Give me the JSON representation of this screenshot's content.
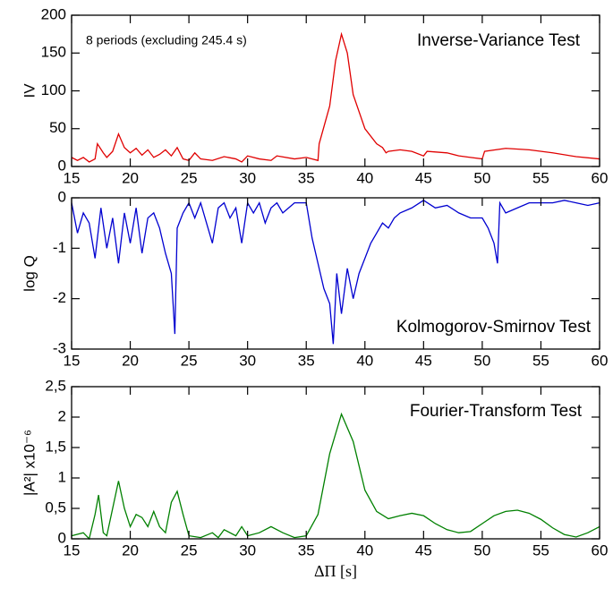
{
  "chart_data": [
    {
      "type": "line",
      "ylabel": "IV",
      "annotations": [
        "8 periods (excluding 245.4 s)",
        "Inverse-Variance Test"
      ],
      "xlim": [
        15,
        60
      ],
      "xticks": [
        15,
        20,
        25,
        30,
        35,
        40,
        45,
        50,
        55,
        60
      ],
      "ylim": [
        0,
        200
      ],
      "yticks": [
        0,
        50,
        100,
        150,
        200
      ],
      "x": [
        15,
        15.5,
        16,
        16.5,
        17,
        17.2,
        17.7,
        18,
        18.5,
        19,
        19.5,
        20,
        20.5,
        21,
        21.5,
        22,
        22.5,
        23,
        23.5,
        24,
        24.5,
        25,
        25.5,
        26,
        27,
        28,
        29,
        29.5,
        30,
        31,
        32,
        32.5,
        34,
        35,
        36,
        36.1,
        37,
        37.5,
        38,
        38.5,
        39,
        40,
        41,
        41.5,
        41.8,
        42,
        43,
        44,
        45,
        45.3,
        47,
        48,
        49,
        50,
        50.2,
        52,
        54,
        56,
        58,
        60
      ],
      "series": [
        {
          "color": "#e00000",
          "values": [
            12,
            8,
            12,
            6,
            10,
            30,
            18,
            12,
            20,
            43,
            25,
            18,
            24,
            15,
            22,
            12,
            16,
            22,
            14,
            25,
            10,
            8,
            18,
            10,
            8,
            13,
            10,
            6,
            14,
            10,
            8,
            14,
            10,
            12,
            8,
            30,
            80,
            140,
            175,
            150,
            95,
            50,
            30,
            25,
            18,
            20,
            22,
            20,
            14,
            20,
            18,
            14,
            12,
            10,
            20,
            24,
            22,
            18,
            13,
            10
          ]
        }
      ]
    },
    {
      "type": "line",
      "ylabel": "log Q",
      "annotations": [
        "Kolmogorov-Smirnov Test"
      ],
      "xlim": [
        15,
        60
      ],
      "xticks": [
        15,
        20,
        25,
        30,
        35,
        40,
        45,
        50,
        55,
        60
      ],
      "ylim": [
        -3,
        0
      ],
      "yticks": [
        -3,
        -2,
        -1,
        0
      ],
      "x": [
        15,
        15.5,
        16,
        16.5,
        17,
        17.5,
        18,
        18.5,
        19,
        19.5,
        20,
        20.5,
        21,
        21.5,
        22,
        22.5,
        23,
        23.5,
        23.8,
        24,
        24.5,
        25,
        25.5,
        26,
        26.5,
        27,
        27.5,
        28,
        28.5,
        29,
        29.5,
        30,
        30.5,
        31,
        31.5,
        32,
        32.5,
        33,
        34,
        35,
        35.5,
        36,
        36.5,
        37,
        37.3,
        37.6,
        38,
        38.5,
        39,
        39.5,
        40,
        40.5,
        41,
        41.5,
        42,
        42.5,
        43,
        44,
        45,
        46,
        47,
        48,
        49,
        50,
        50.5,
        51,
        51.3,
        51.5,
        52,
        53,
        54,
        55,
        56,
        57,
        58,
        59,
        60
      ],
      "series": [
        {
          "color": "#0000d0",
          "values": [
            -0.1,
            -0.7,
            -0.3,
            -0.5,
            -1.2,
            -0.2,
            -1.0,
            -0.4,
            -1.3,
            -0.3,
            -0.9,
            -0.2,
            -1.1,
            -0.4,
            -0.3,
            -0.6,
            -1.1,
            -1.5,
            -2.7,
            -0.6,
            -0.3,
            -0.1,
            -0.4,
            -0.1,
            -0.5,
            -0.9,
            -0.2,
            -0.1,
            -0.4,
            -0.2,
            -0.9,
            -0.1,
            -0.3,
            -0.1,
            -0.5,
            -0.2,
            -0.1,
            -0.3,
            -0.1,
            -0.1,
            -0.8,
            -1.3,
            -1.8,
            -2.1,
            -2.9,
            -1.5,
            -2.3,
            -1.4,
            -2.0,
            -1.5,
            -1.2,
            -0.9,
            -0.7,
            -0.5,
            -0.6,
            -0.4,
            -0.3,
            -0.2,
            -0.05,
            -0.2,
            -0.15,
            -0.3,
            -0.4,
            -0.4,
            -0.6,
            -0.9,
            -1.3,
            -0.1,
            -0.3,
            -0.2,
            -0.1,
            -0.1,
            -0.1,
            -0.05,
            -0.1,
            -0.15,
            -0.1
          ]
        }
      ]
    },
    {
      "type": "line",
      "ylabel": "|A²| x10⁻⁶",
      "xlabel": "ΔΠ [s]",
      "annotations": [
        "Fourier-Transform Test"
      ],
      "xlim": [
        15,
        60
      ],
      "xticks": [
        15,
        20,
        25,
        30,
        35,
        40,
        45,
        50,
        55,
        60
      ],
      "ylim": [
        0,
        2.5
      ],
      "yticks": [
        0,
        {
          "value": 0.5,
          "label": "0,5"
        },
        1,
        {
          "value": 1.5,
          "label": "1,5"
        },
        2,
        {
          "value": 2.5,
          "label": "2,5"
        }
      ],
      "x": [
        15,
        16,
        16.5,
        17,
        17.3,
        17.7,
        18,
        18.5,
        19,
        19.5,
        20,
        20.5,
        21,
        21.5,
        22,
        22.5,
        23,
        23.5,
        24,
        24.5,
        25,
        26,
        27,
        27.5,
        28,
        29,
        29.5,
        30,
        31,
        32,
        33,
        34,
        35,
        36,
        37,
        38,
        39,
        40,
        41,
        42,
        43,
        44,
        45,
        46,
        47,
        48,
        49,
        50,
        51,
        52,
        53,
        54,
        55,
        56,
        57,
        58,
        59,
        60
      ],
      "series": [
        {
          "color": "#008000",
          "values": [
            0.05,
            0.1,
            0,
            0.4,
            0.72,
            0.1,
            0.05,
            0.5,
            0.95,
            0.5,
            0.2,
            0.4,
            0.35,
            0.2,
            0.45,
            0.2,
            0.1,
            0.6,
            0.78,
            0.4,
            0.05,
            0.02,
            0.1,
            0.02,
            0.15,
            0.05,
            0.2,
            0.05,
            0.1,
            0.2,
            0.1,
            0.02,
            0.05,
            0.4,
            1.4,
            2.05,
            1.6,
            0.8,
            0.45,
            0.33,
            0.38,
            0.42,
            0.38,
            0.25,
            0.15,
            0.1,
            0.12,
            0.25,
            0.38,
            0.45,
            0.47,
            0.42,
            0.32,
            0.18,
            0.07,
            0.03,
            0.1,
            0.2
          ]
        }
      ]
    }
  ]
}
